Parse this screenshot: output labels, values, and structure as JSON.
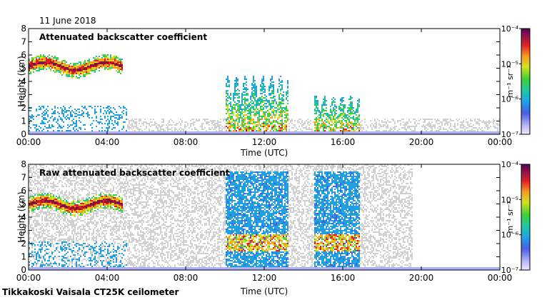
{
  "header": {
    "date": "11 June 2018"
  },
  "footer": {
    "station": "Tikkakoski Vaisala CT25K ceilometer"
  },
  "colors": {
    "scale": [
      "#e8e8f8",
      "#b0b0f0",
      "#4060e0",
      "#20a0e0",
      "#20c0a0",
      "#40d040",
      "#d0e020",
      "#f0a020",
      "#e02020",
      "#801040",
      "#600060"
    ],
    "noise": "#d0d0d0",
    "low_blue": "#3050e0"
  },
  "chart_data": [
    {
      "type": "heatmap",
      "title": "Attenuated backscatter coefficient",
      "xlabel": "Time (UTC)",
      "ylabel": "Height (km)",
      "xlim": [
        0,
        24
      ],
      "ylim": [
        0,
        8
      ],
      "xticks": [
        "00:00",
        "04:00",
        "08:00",
        "12:00",
        "16:00",
        "20:00",
        "00:00"
      ],
      "yticks": [
        "0",
        "1",
        "2",
        "3",
        "4",
        "5",
        "6",
        "7",
        "8"
      ],
      "colorbar": {
        "label": "m⁻¹ sr⁻¹",
        "scale": "log",
        "ticks": [
          "10⁻⁷",
          "10⁻⁶",
          "10⁻⁵",
          "10⁻⁴"
        ]
      },
      "features": [
        {
          "name": "cloud layer",
          "t_start": 0,
          "t_end": 4.8,
          "height_km": 5.2,
          "intensity": "high"
        },
        {
          "name": "convective cells",
          "t_start": 10,
          "t_end": 13.2,
          "height_top_km": 4.5,
          "intensity": "high"
        },
        {
          "name": "convective cells",
          "t_start": 14.5,
          "t_end": 16.8,
          "height_top_km": 3.0,
          "intensity": "high"
        }
      ]
    },
    {
      "type": "heatmap",
      "title": "Raw attenuated backscatter coefficient",
      "xlabel": "Time (UTC)",
      "ylabel": "Height (km)",
      "xlim": [
        0,
        24
      ],
      "ylim": [
        0,
        8
      ],
      "xticks": [
        "00:00",
        "04:00",
        "08:00",
        "12:00",
        "16:00",
        "20:00",
        "00:00"
      ],
      "yticks": [
        "0",
        "1",
        "2",
        "3",
        "4",
        "5",
        "6",
        "7",
        "8"
      ],
      "colorbar": {
        "label": "m⁻¹ sr⁻¹",
        "scale": "log",
        "ticks": [
          "10⁻⁷",
          "10⁻⁶",
          "10⁻⁵",
          "10⁻⁴"
        ]
      },
      "features": [
        {
          "name": "cloud layer",
          "t_start": 0,
          "t_end": 4.8,
          "height_km": 5.0,
          "intensity": "high"
        },
        {
          "name": "noisy columns",
          "t_start": 10,
          "t_end": 13.2,
          "height_top_km": 7.5,
          "intensity": "noise"
        },
        {
          "name": "noisy columns",
          "t_start": 14.5,
          "t_end": 16.8,
          "height_top_km": 7.5,
          "intensity": "noise"
        }
      ]
    }
  ]
}
